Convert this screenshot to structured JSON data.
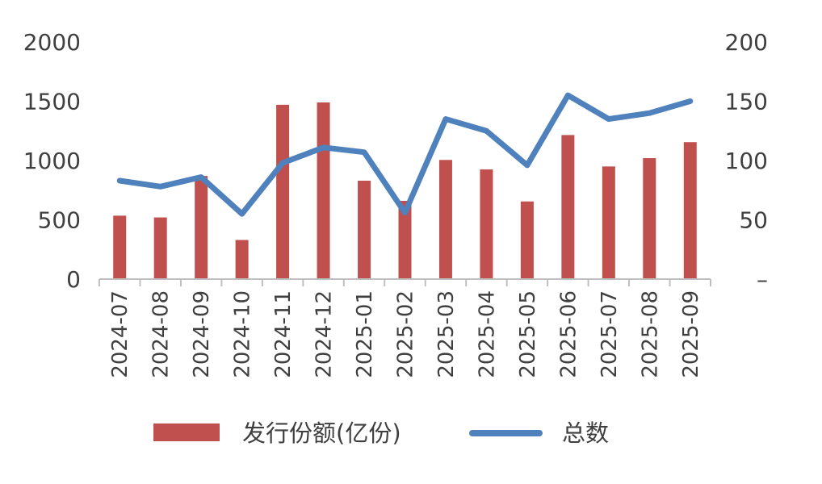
{
  "chart_data": {
    "type": "bar",
    "categories": [
      "2024-07",
      "2024-08",
      "2024-09",
      "2024-10",
      "2024-11",
      "2024-12",
      "2025-01",
      "2025-02",
      "2025-03",
      "2025-04",
      "2025-05",
      "2025-06",
      "2025-07",
      "2025-08",
      "2025-09"
    ],
    "series": [
      {
        "name": "发行份额(亿份)",
        "type": "bar",
        "axis": "left",
        "color": "#c0504d",
        "values": [
          535,
          520,
          870,
          330,
          1470,
          1490,
          830,
          660,
          1005,
          925,
          655,
          1215,
          950,
          1020,
          1155
        ]
      },
      {
        "name": "总数",
        "type": "line",
        "axis": "right",
        "color": "#4f81bd",
        "values": [
          83,
          78,
          86,
          55,
          98,
          111,
          107,
          56,
          135,
          125,
          96,
          155,
          135,
          140,
          150
        ]
      }
    ],
    "left_axis": {
      "range": [
        0,
        2000
      ],
      "ticks": [
        0,
        500,
        1000,
        1500,
        2000
      ],
      "tick_labels": [
        "0",
        "500",
        "1000",
        "1500",
        "2000"
      ]
    },
    "right_axis": {
      "range": [
        0,
        200
      ],
      "ticks": [
        0,
        50,
        100,
        150,
        200
      ],
      "tick_labels": [
        "–",
        "50",
        "100",
        "150",
        "200"
      ]
    },
    "grid": false,
    "legend_position": "bottom"
  }
}
